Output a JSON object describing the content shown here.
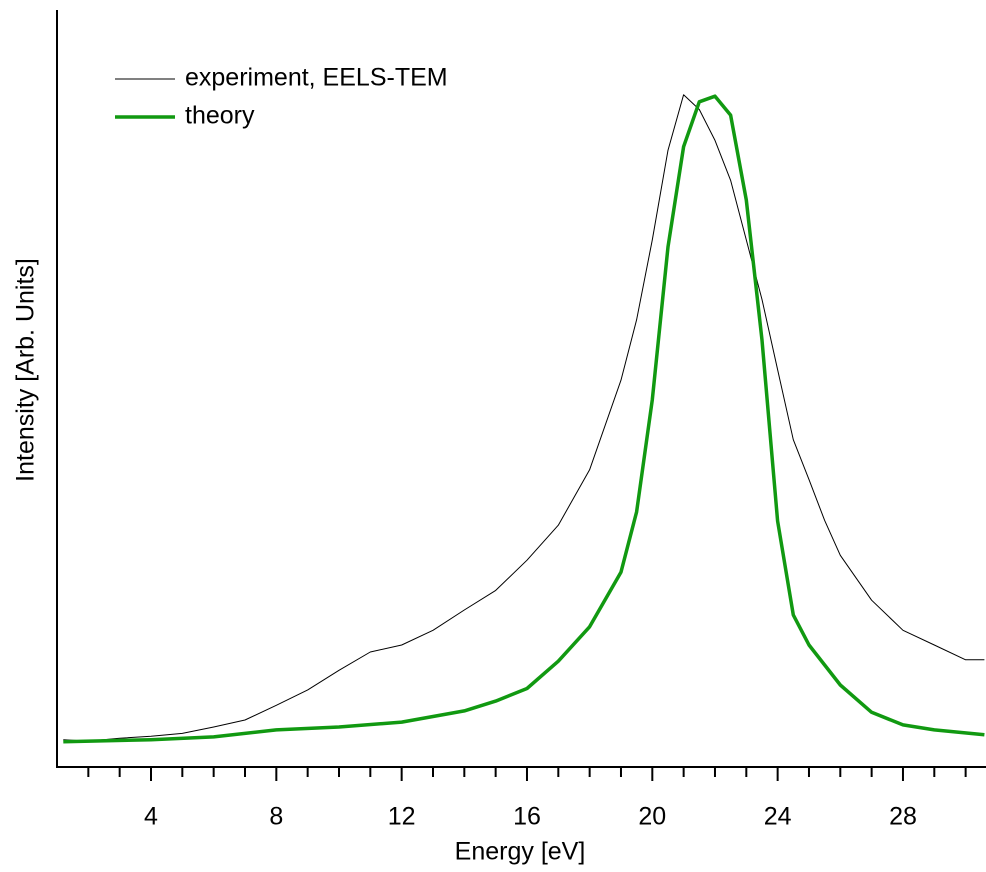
{
  "chart_data": {
    "type": "line",
    "x_label": "Energy [eV]",
    "y_label": "Intensity [Arb. Units]",
    "xlim": [
      1,
      30.65
    ],
    "ylim": [
      0,
      1.08
    ],
    "xticks": [
      4,
      8,
      12,
      16,
      20,
      24,
      28
    ],
    "xminorticks": [
      2,
      3,
      5,
      6,
      7,
      9,
      10,
      11,
      13,
      14,
      15,
      17,
      18,
      19,
      21,
      22,
      23,
      25,
      26,
      27,
      29,
      30
    ],
    "legend": "top-left",
    "series": [
      {
        "name": "experiment, EELS-TEM",
        "color": "#000000",
        "width": 1,
        "x": [
          1.2,
          2,
          3,
          4,
          5,
          6,
          7,
          8,
          9,
          10,
          11,
          12,
          13,
          14,
          15,
          16,
          17,
          18,
          19,
          19.5,
          20,
          20.5,
          21,
          21.5,
          22,
          22.5,
          23,
          23.5,
          24,
          24.5,
          25,
          25.5,
          26,
          27,
          28,
          29,
          30,
          30.6
        ],
        "values": [
          0.039,
          0.037,
          0.041,
          0.044,
          0.048,
          0.057,
          0.067,
          0.088,
          0.11,
          0.138,
          0.164,
          0.174,
          0.195,
          0.224,
          0.252,
          0.295,
          0.345,
          0.424,
          0.552,
          0.638,
          0.752,
          0.88,
          0.959,
          0.938,
          0.894,
          0.837,
          0.752,
          0.667,
          0.567,
          0.467,
          0.41,
          0.352,
          0.302,
          0.238,
          0.195,
          0.174,
          0.153,
          0.153
        ]
      },
      {
        "name": "theory",
        "color": "#119911",
        "width": 3.5,
        "x": [
          1.2,
          4,
          6,
          8,
          10,
          12,
          14,
          15,
          16,
          17,
          18,
          19,
          19.5,
          20,
          20.5,
          21,
          21.5,
          22,
          22.5,
          23,
          23.5,
          24,
          24.5,
          25,
          26,
          27,
          28,
          29,
          30.6
        ],
        "values": [
          0.036,
          0.039,
          0.043,
          0.053,
          0.057,
          0.064,
          0.08,
          0.094,
          0.112,
          0.151,
          0.2,
          0.278,
          0.364,
          0.524,
          0.742,
          0.885,
          0.949,
          0.957,
          0.93,
          0.809,
          0.609,
          0.351,
          0.217,
          0.174,
          0.117,
          0.078,
          0.06,
          0.053,
          0.046
        ]
      }
    ]
  }
}
